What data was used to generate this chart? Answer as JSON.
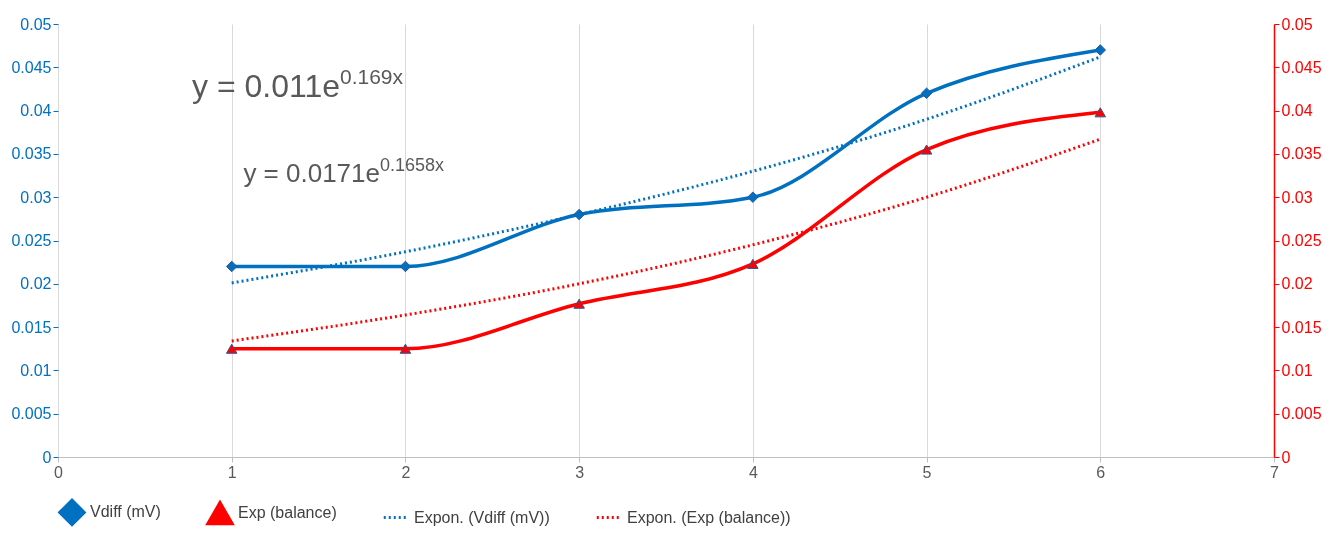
{
  "chart_data": {
    "type": "line",
    "x": [
      1,
      2,
      3,
      4,
      5,
      6
    ],
    "xlim": [
      0,
      7
    ],
    "xticks": [
      0,
      1,
      2,
      3,
      4,
      5,
      6,
      7
    ],
    "ylim": [
      0,
      0.05
    ],
    "yticks": [
      0,
      0.005,
      0.01,
      0.015,
      0.02,
      0.025,
      0.03,
      0.035,
      0.04,
      0.045,
      0.05
    ],
    "y2lim": [
      0,
      0.05
    ],
    "y2ticks": [
      0,
      0.005,
      0.01,
      0.015,
      0.02,
      0.025,
      0.03,
      0.035,
      0.04,
      0.045,
      0.05
    ],
    "grid": "x",
    "legend": "bottom",
    "annotations": [
      "y = 0.011e$^{0.169x}$",
      "y = 0.0171e$^{0.1658x}$"
    ],
    "series": [
      {
        "name": "Vdiff (mV)",
        "color": "#0070c0",
        "values": [
          0.022,
          0.022,
          0.028,
          0.03,
          0.042,
          0.047
        ],
        "marker": "diamond",
        "line_style": "solid"
      },
      {
        "name": "Exp (balance)",
        "color": "#ff0000",
        "axis": "y2",
        "values": [
          0.0125,
          0.0125,
          0.0177,
          0.0223,
          0.0355,
          0.0398
        ],
        "marker": "triangle",
        "line_style": "solid"
      },
      {
        "name": "Expon. (Vdiff (mV))",
        "color": "#0070c0",
        "values": [
          0.0201,
          0.0237,
          0.028,
          0.033,
          0.039,
          0.0462
        ],
        "marker": "none",
        "line_style": "dotted"
      },
      {
        "name": "Expon. (Exp (balance))",
        "color": "#ff0000",
        "axis": "y2",
        "values": [
          0.0134,
          0.0164,
          0.02,
          0.0245,
          0.03,
          0.0367
        ],
        "marker": "none",
        "line_style": "dotted"
      }
    ]
  }
}
